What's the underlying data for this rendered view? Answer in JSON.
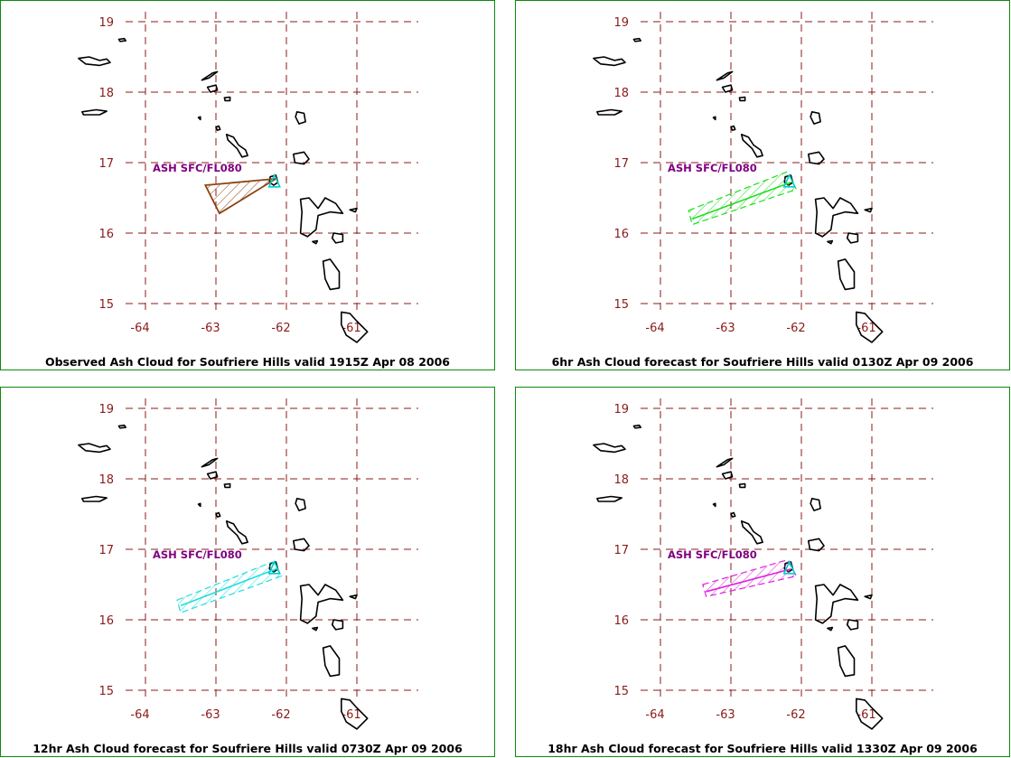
{
  "colors": {
    "panel_border": "#0c8a0c",
    "grid_line": "#8b1a1a",
    "tick_label": "#8b1a1a",
    "coastline": "#000000",
    "volcano_marker": "#00cccc",
    "ash_label": "#800080"
  },
  "chart_data": [
    {
      "type": "map",
      "title": "Observed Ash Cloud for Soufriere  Hills valid 1915Z Apr 08 2006",
      "lat_ticks": [
        "19",
        "18",
        "17",
        "16",
        "15"
      ],
      "lon_ticks": [
        "-64",
        "-63",
        "-62",
        "-61"
      ],
      "lat_range": [
        15,
        19
      ],
      "lon_range": [
        -64,
        -60.8
      ],
      "ash_label": "ASH SFC/FL080",
      "ash_color": "#8b4513",
      "volcano": {
        "lon": -62.17,
        "lat": 16.72
      },
      "ash_polygon": [
        [
          -63.15,
          16.68
        ],
        [
          -62.15,
          16.77
        ],
        [
          -62.95,
          16.28
        ]
      ],
      "ash_axis": null
    },
    {
      "type": "map",
      "title": "6hr Ash Cloud forecast for Soufriere  Hills valid 0130Z Apr 09 2006",
      "lat_ticks": [
        "19",
        "18",
        "17",
        "16",
        "15"
      ],
      "lon_ticks": [
        "-64",
        "-63",
        "-62",
        "-61"
      ],
      "lat_range": [
        15,
        19
      ],
      "lon_range": [
        -64,
        -60.8
      ],
      "ash_label": "ASH SFC/FL080",
      "ash_color": "#22dd22",
      "volcano": {
        "lon": -62.17,
        "lat": 16.72
      },
      "ash_polygon": [
        [
          -63.6,
          16.32
        ],
        [
          -62.2,
          16.87
        ],
        [
          -62.07,
          16.62
        ],
        [
          -63.55,
          16.12
        ]
      ],
      "ash_axis": [
        [
          -63.55,
          16.2
        ],
        [
          -62.15,
          16.72
        ]
      ]
    },
    {
      "type": "map",
      "title": "12hr Ash Cloud forecast for Soufriere  Hills valid 0730Z Apr 09 2006",
      "lat_ticks": [
        "19",
        "18",
        "17",
        "16",
        "15"
      ],
      "lon_ticks": [
        "-64",
        "-63",
        "-62",
        "-61"
      ],
      "lat_range": [
        15,
        19
      ],
      "lon_range": [
        -64,
        -60.8
      ],
      "ash_label": "ASH SFC/FL080",
      "ash_color": "#22dddd",
      "volcano": {
        "lon": -62.17,
        "lat": 16.72
      },
      "ash_polygon": [
        [
          -63.55,
          16.28
        ],
        [
          -62.2,
          16.82
        ],
        [
          -62.07,
          16.62
        ],
        [
          -63.5,
          16.1
        ]
      ],
      "ash_axis": [
        [
          -63.5,
          16.2
        ],
        [
          -62.15,
          16.72
        ]
      ]
    },
    {
      "type": "map",
      "title": "18hr Ash Cloud forecast for Soufriere  Hills valid 1330Z Apr 09 2006",
      "lat_ticks": [
        "19",
        "18",
        "17",
        "16",
        "15"
      ],
      "lon_ticks": [
        "-64",
        "-63",
        "-62",
        "-61"
      ],
      "lat_range": [
        15,
        19
      ],
      "lon_range": [
        -64,
        -60.8
      ],
      "ash_label": "ASH SFC/FL080",
      "ash_color": "#dd22dd",
      "volcano": {
        "lon": -62.17,
        "lat": 16.72
      },
      "ash_polygon": [
        [
          -63.4,
          16.5
        ],
        [
          -62.2,
          16.85
        ],
        [
          -62.07,
          16.62
        ],
        [
          -63.35,
          16.33
        ]
      ],
      "ash_axis": [
        [
          -63.35,
          16.4
        ],
        [
          -62.15,
          16.72
        ]
      ]
    }
  ],
  "islands": [
    {
      "name": "virgin-islands-north",
      "pts": [
        [
          -64.95,
          18.48
        ],
        [
          -64.8,
          18.5
        ],
        [
          -64.65,
          18.45
        ],
        [
          -64.55,
          18.47
        ],
        [
          -64.5,
          18.42
        ],
        [
          -64.65,
          18.38
        ],
        [
          -64.85,
          18.4
        ]
      ]
    },
    {
      "name": "st-croix",
      "pts": [
        [
          -64.9,
          17.72
        ],
        [
          -64.7,
          17.75
        ],
        [
          -64.55,
          17.73
        ],
        [
          -64.65,
          17.68
        ],
        [
          -64.88,
          17.68
        ]
      ]
    },
    {
      "name": "anegada",
      "pts": [
        [
          -64.38,
          18.75
        ],
        [
          -64.3,
          18.76
        ],
        [
          -64.28,
          18.73
        ],
        [
          -64.36,
          18.72
        ]
      ]
    },
    {
      "name": "anguilla",
      "pts": [
        [
          -63.2,
          18.17
        ],
        [
          -63.05,
          18.27
        ],
        [
          -62.98,
          18.29
        ],
        [
          -63.1,
          18.2
        ]
      ]
    },
    {
      "name": "st-martin",
      "pts": [
        [
          -63.12,
          18.07
        ],
        [
          -63.0,
          18.1
        ],
        [
          -62.98,
          18.03
        ],
        [
          -63.08,
          18.0
        ]
      ]
    },
    {
      "name": "st-barthelemy",
      "pts": [
        [
          -62.88,
          17.92
        ],
        [
          -62.8,
          17.93
        ],
        [
          -62.8,
          17.88
        ],
        [
          -62.87,
          17.88
        ]
      ]
    },
    {
      "name": "saba",
      "pts": [
        [
          -63.25,
          17.64
        ],
        [
          -63.22,
          17.65
        ],
        [
          -63.22,
          17.61
        ]
      ]
    },
    {
      "name": "st-eustatius",
      "pts": [
        [
          -63.0,
          17.5
        ],
        [
          -62.96,
          17.52
        ],
        [
          -62.94,
          17.47
        ],
        [
          -62.98,
          17.46
        ]
      ]
    },
    {
      "name": "st-kitts-nevis",
      "pts": [
        [
          -62.85,
          17.4
        ],
        [
          -62.75,
          17.36
        ],
        [
          -62.68,
          17.25
        ],
        [
          -62.58,
          17.18
        ],
        [
          -62.55,
          17.1
        ],
        [
          -62.63,
          17.08
        ],
        [
          -62.7,
          17.2
        ],
        [
          -62.83,
          17.32
        ]
      ]
    },
    {
      "name": "barbuda",
      "pts": [
        [
          -61.85,
          17.72
        ],
        [
          -61.75,
          17.7
        ],
        [
          -61.73,
          17.58
        ],
        [
          -61.82,
          17.55
        ],
        [
          -61.87,
          17.65
        ]
      ]
    },
    {
      "name": "antigua",
      "pts": [
        [
          -61.9,
          17.12
        ],
        [
          -61.75,
          17.15
        ],
        [
          -61.68,
          17.05
        ],
        [
          -61.75,
          16.98
        ],
        [
          -61.88,
          17.0
        ]
      ]
    },
    {
      "name": "montserrat",
      "pts": [
        [
          -62.23,
          16.8
        ],
        [
          -62.15,
          16.82
        ],
        [
          -62.12,
          16.72
        ],
        [
          -62.18,
          16.68
        ],
        [
          -62.24,
          16.72
        ]
      ]
    },
    {
      "name": "guadeloupe",
      "pts": [
        [
          -61.8,
          16.48
        ],
        [
          -61.68,
          16.5
        ],
        [
          -61.55,
          16.35
        ],
        [
          -61.45,
          16.5
        ],
        [
          -61.3,
          16.42
        ],
        [
          -61.2,
          16.28
        ],
        [
          -61.38,
          16.3
        ],
        [
          -61.55,
          16.25
        ],
        [
          -61.58,
          16.05
        ],
        [
          -61.7,
          15.95
        ],
        [
          -61.8,
          16.0
        ],
        [
          -61.78,
          16.3
        ]
      ]
    },
    {
      "name": "desirade",
      "pts": [
        [
          -61.1,
          16.33
        ],
        [
          -61.0,
          16.35
        ],
        [
          -61.02,
          16.3
        ]
      ]
    },
    {
      "name": "marie-galante",
      "pts": [
        [
          -61.33,
          16.0
        ],
        [
          -61.2,
          15.98
        ],
        [
          -61.2,
          15.88
        ],
        [
          -61.3,
          15.86
        ],
        [
          -61.35,
          15.93
        ]
      ]
    },
    {
      "name": "les-saintes",
      "pts": [
        [
          -61.63,
          15.88
        ],
        [
          -61.56,
          15.89
        ],
        [
          -61.58,
          15.85
        ]
      ]
    },
    {
      "name": "dominica",
      "pts": [
        [
          -61.48,
          15.6
        ],
        [
          -61.38,
          15.63
        ],
        [
          -61.25,
          15.45
        ],
        [
          -61.25,
          15.22
        ],
        [
          -61.38,
          15.2
        ],
        [
          -61.45,
          15.35
        ]
      ]
    },
    {
      "name": "martinique",
      "pts": [
        [
          -61.22,
          14.88
        ],
        [
          -61.1,
          14.86
        ],
        [
          -61.0,
          14.75
        ],
        [
          -60.85,
          14.6
        ],
        [
          -61.0,
          14.45
        ],
        [
          -61.15,
          14.55
        ],
        [
          -61.22,
          14.7
        ]
      ]
    }
  ]
}
